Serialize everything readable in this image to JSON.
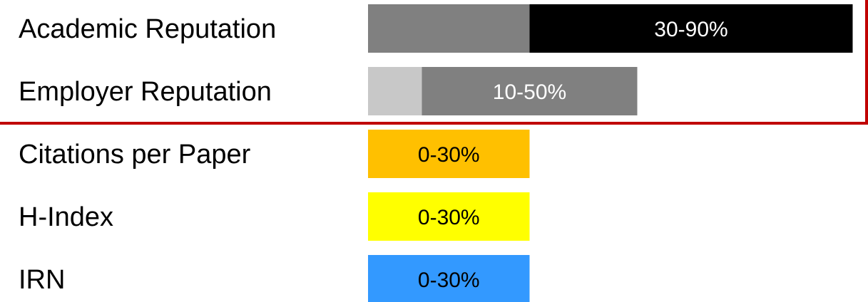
{
  "chart_data": {
    "type": "bar",
    "title": "",
    "xlabel": "",
    "ylabel": "",
    "xlim": [
      0,
      100
    ],
    "grid": false,
    "legend": "none",
    "highlight_box_color": "#c00000",
    "highlighted_categories": [
      "Academic Reputation",
      "Employer Reputation"
    ],
    "bars": [
      {
        "category": "Academic Reputation",
        "range_label": "30-90%",
        "min": 30,
        "max": 90,
        "base_color": "#808080",
        "range_color": "#000000",
        "label_color": "#ffffff"
      },
      {
        "category": "Employer Reputation",
        "range_label": "10-50%",
        "min": 10,
        "max": 50,
        "base_color": "#c8c8c8",
        "range_color": "#808080",
        "label_color": "#ffffff"
      },
      {
        "category": "Citations per Paper",
        "range_label": "0-30%",
        "min": 0,
        "max": 30,
        "base_color": "#ffc000",
        "range_color": "#ffc000",
        "label_color": "#000000"
      },
      {
        "category": "H-Index",
        "range_label": "0-30%",
        "min": 0,
        "max": 30,
        "base_color": "#ffff00",
        "range_color": "#ffff00",
        "label_color": "#000000"
      },
      {
        "category": "IRN",
        "range_label": "0-30%",
        "min": 0,
        "max": 30,
        "base_color": "#3399ff",
        "range_color": "#3399ff",
        "label_color": "#000000"
      }
    ]
  }
}
